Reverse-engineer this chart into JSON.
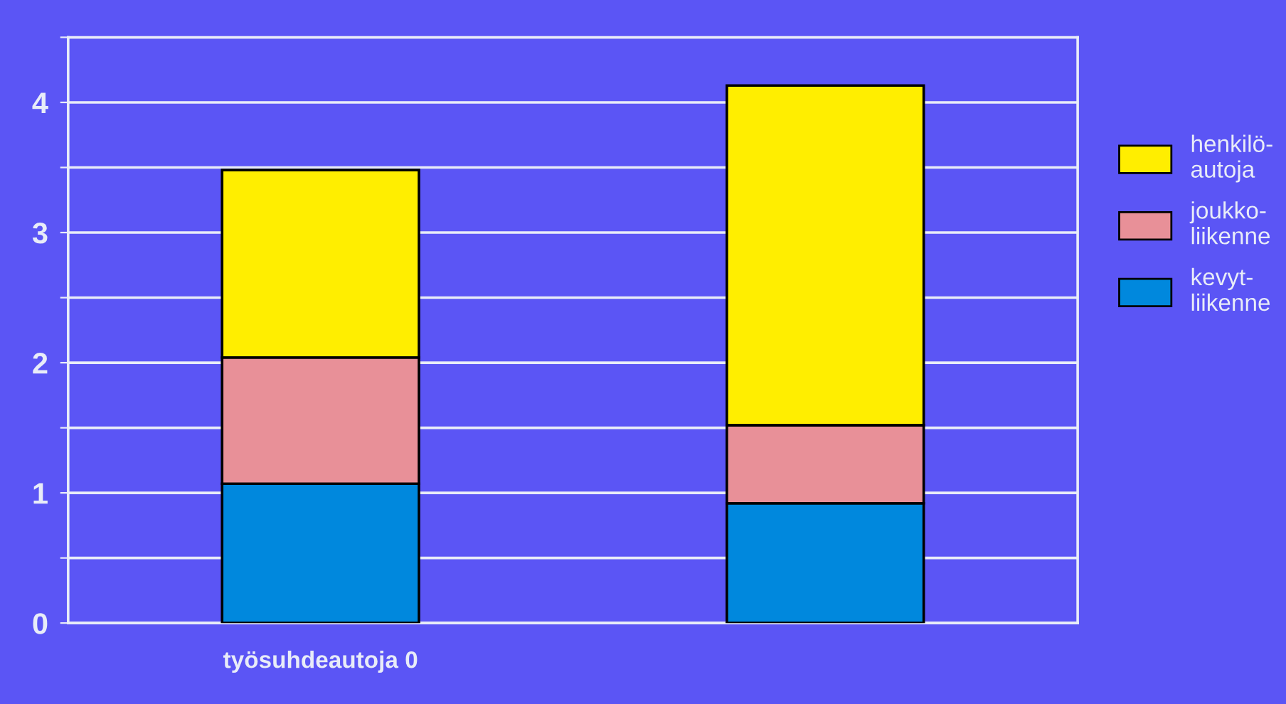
{
  "chart_data": {
    "type": "bar",
    "stacked": true,
    "categories": [
      "työsuhdeautoja 0",
      null
    ],
    "series": [
      {
        "name": "kevyt-\nliikenne",
        "color": "#0088dd",
        "values": [
          1.07,
          0.92
        ]
      },
      {
        "name": "joukko-\nliikenne",
        "color": "#e89098",
        "values": [
          0.97,
          0.6
        ]
      },
      {
        "name": "henkilö-\nautoja",
        "color": "#ffee00",
        "values": [
          1.44,
          2.61
        ]
      }
    ],
    "ylim": [
      0,
      4.5
    ],
    "yticks": [
      0,
      {
        "value": 0.5,
        "label": null
      },
      1,
      {
        "value": 1.5,
        "label": null
      },
      2,
      {
        "value": 2.5,
        "label": null
      },
      3,
      {
        "value": 3.5,
        "label": null
      },
      4,
      {
        "value": 4.5,
        "label": null
      }
    ],
    "grid": "y",
    "legend": "right"
  }
}
